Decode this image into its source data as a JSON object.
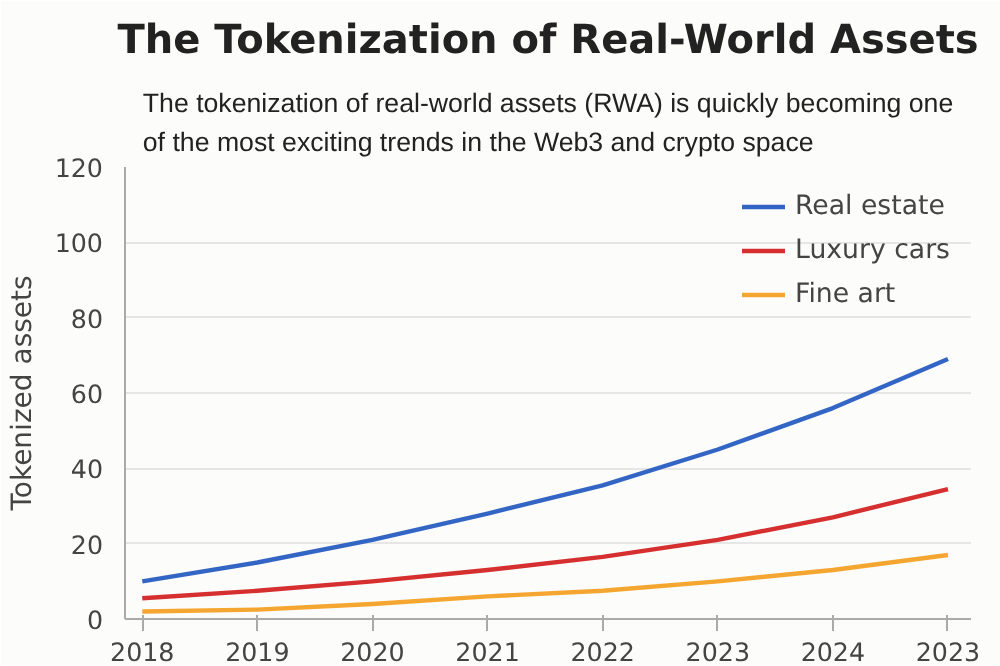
{
  "chart_data": {
    "type": "line",
    "title": "The Tokenization of Real-World Assets",
    "subtitle": "The tokenization of real-world assets (RWA) is quickly becoming one of the most exciting trends in the Web3 and crypto space",
    "ylabel": "Tokenized assets",
    "categories": [
      "2018",
      "2019",
      "2020",
      "2021",
      "2022",
      "2023",
      "2024",
      "2023"
    ],
    "series": [
      {
        "name": "Real estate",
        "color": "#3366c4",
        "values": [
          10,
          15,
          21,
          28,
          35.5,
          45,
          56,
          69
        ]
      },
      {
        "name": "Luxury cars",
        "color": "#d62f2f",
        "values": [
          5.5,
          7.5,
          10,
          13,
          16.5,
          21,
          27,
          34.5
        ]
      },
      {
        "name": "Fine art",
        "color": "#f5a631",
        "values": [
          2,
          2.5,
          4,
          6,
          7.5,
          10,
          13,
          17
        ]
      }
    ],
    "ylim": [
      0,
      120
    ],
    "yticks": [
      0,
      20,
      40,
      60,
      80,
      100,
      120
    ],
    "grid": "y",
    "legend": "top right",
    "line_style": "solid",
    "marker": "none"
  }
}
